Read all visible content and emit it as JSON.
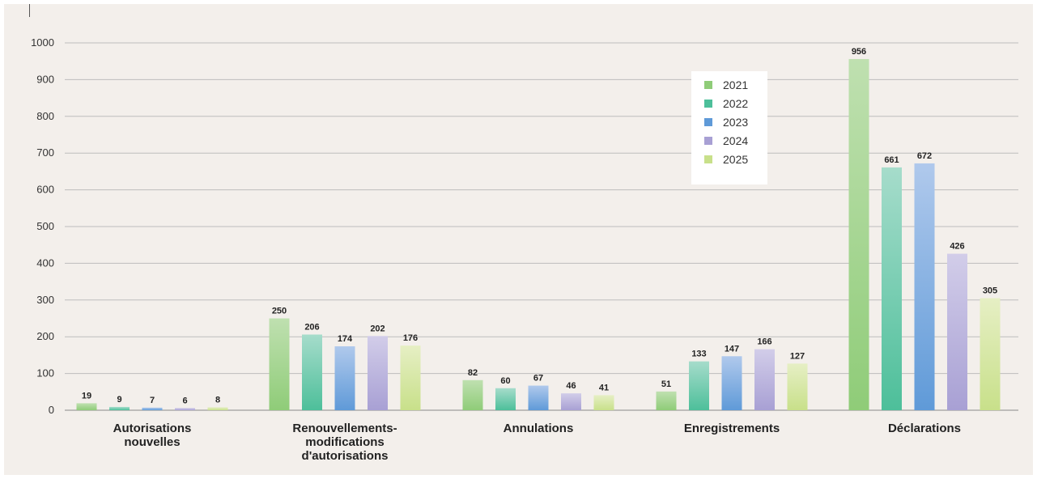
{
  "chart_data": {
    "type": "bar",
    "title": "",
    "xlabel": "",
    "ylabel": "",
    "ylim": [
      0,
      1000
    ],
    "yticks": [
      "0",
      "100",
      "200",
      "300",
      "400",
      "500",
      "600",
      "700",
      "800",
      "900",
      "1000"
    ],
    "grid": true,
    "legend_position": "top-right",
    "categories": [
      [
        "Autorisations",
        "nouvelles"
      ],
      [
        "Renouvellements-",
        "modifications",
        "d'autorisations"
      ],
      [
        "Annulations"
      ],
      [
        "Enregistrements"
      ],
      [
        "Déclarations"
      ]
    ],
    "series": [
      {
        "name": "2021",
        "values": [
          19,
          250,
          82,
          51,
          956
        ],
        "color_top": "#bfe0b0",
        "color_bottom": "#8fcc78"
      },
      {
        "name": "2022",
        "values": [
          9,
          206,
          60,
          133,
          661
        ],
        "color_top": "#a6dccb",
        "color_bottom": "#4dbf9a"
      },
      {
        "name": "2023",
        "values": [
          7,
          174,
          67,
          147,
          672
        ],
        "color_top": "#b0c9ec",
        "color_bottom": "#5f9ad8"
      },
      {
        "name": "2024",
        "values": [
          6,
          202,
          46,
          166,
          426
        ],
        "color_top": "#d2cde9",
        "color_bottom": "#a8a0d4"
      },
      {
        "name": "2025",
        "values": [
          8,
          176,
          41,
          127,
          305
        ],
        "color_top": "#e6efc4",
        "color_bottom": "#c8e08a"
      }
    ]
  },
  "legend": {
    "swatch_colors": [
      "#8fcc78",
      "#4dbf9a",
      "#5f9ad8",
      "#a8a0d4",
      "#c8e08a"
    ]
  }
}
